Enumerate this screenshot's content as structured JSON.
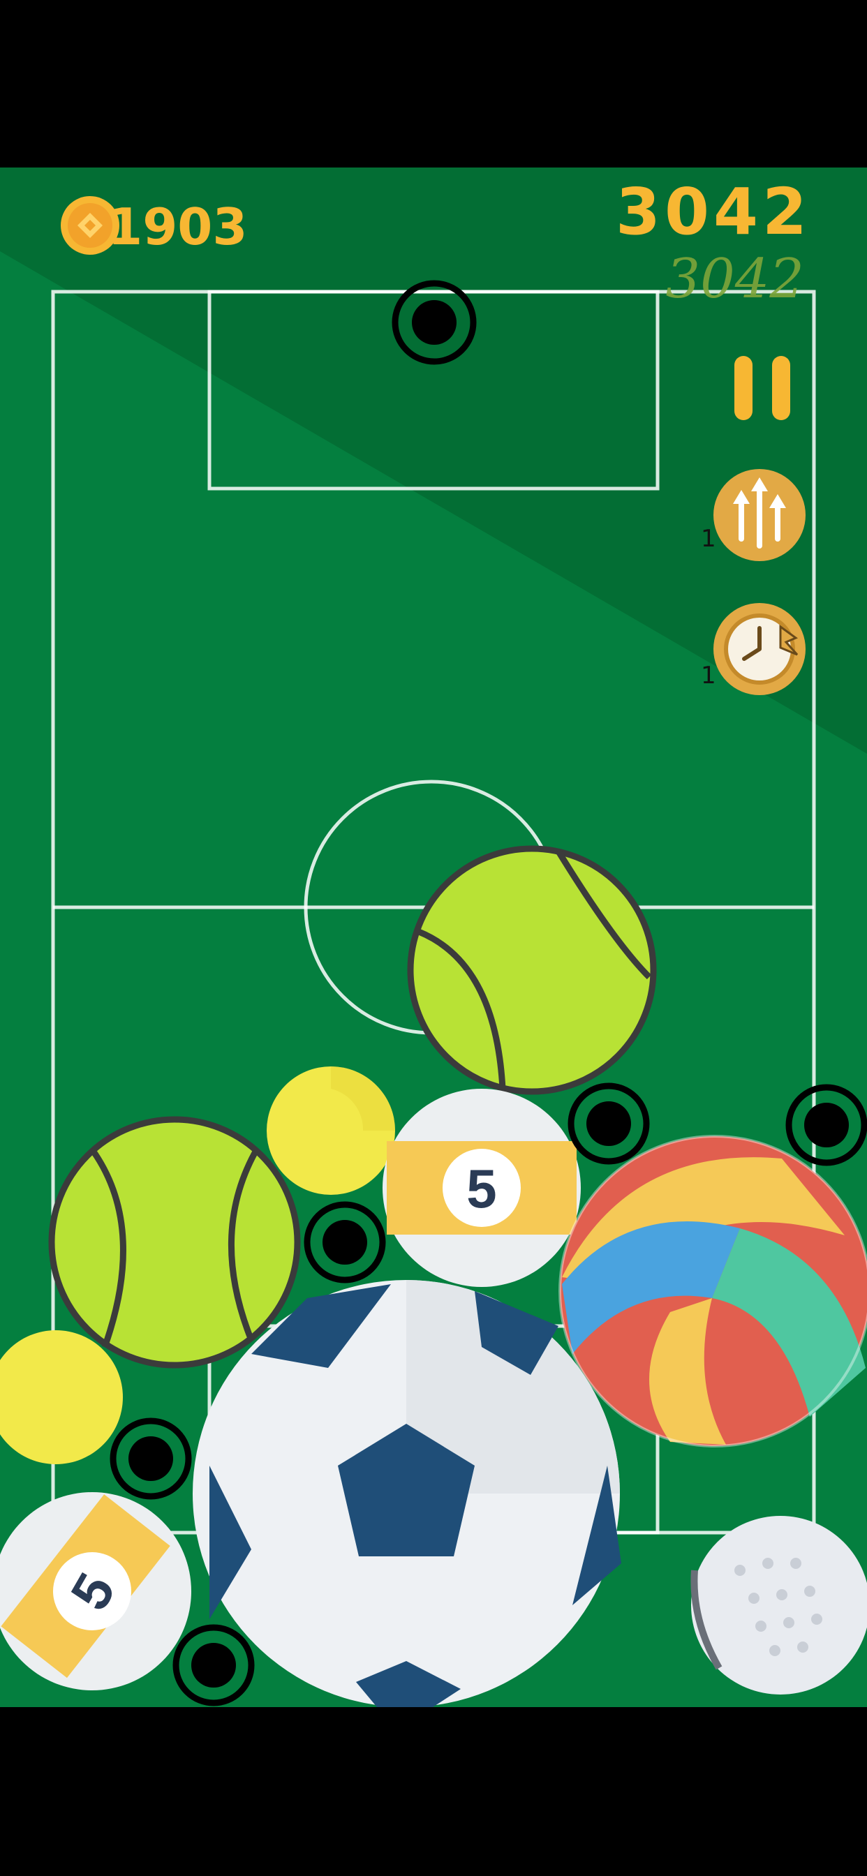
{
  "hud": {
    "coins": "31903",
    "score": "3042",
    "best_score": "3042"
  },
  "powerups": [
    {
      "name": "lift-boost-icon",
      "count": "1"
    },
    {
      "name": "time-bomb-icon",
      "count": "1"
    }
  ],
  "colors": {
    "field": "#047f3f",
    "field_shade": "#036e34",
    "accent": "#f7b733",
    "powerup_bg": "#e2a945"
  },
  "balls": [
    {
      "type": "tennis-ball",
      "label": ""
    },
    {
      "type": "tennis-ball",
      "label": ""
    },
    {
      "type": "yellow-ball",
      "label": ""
    },
    {
      "type": "yellow-ball",
      "label": ""
    },
    {
      "type": "billiard-ball",
      "label": "5"
    },
    {
      "type": "billiard-ball",
      "label": "5"
    },
    {
      "type": "volleyball",
      "label": ""
    },
    {
      "type": "soccer-ball",
      "label": ""
    },
    {
      "type": "golf-ball",
      "label": ""
    }
  ]
}
